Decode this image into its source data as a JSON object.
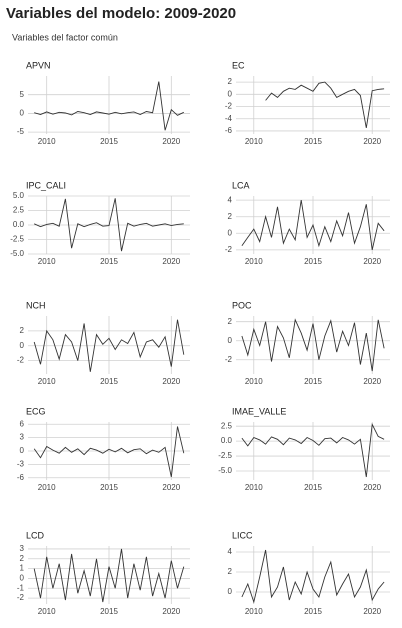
{
  "title": "Variables del modelo: 2009-2020",
  "subtitle": "Variables del factor común",
  "chart_data": [
    {
      "type": "line",
      "title": "APVN",
      "color": "#333333",
      "grid": true,
      "x": [
        2009,
        2009.5,
        2010,
        2010.5,
        2011,
        2011.5,
        2012,
        2012.5,
        2013,
        2013.5,
        2014,
        2014.5,
        2015,
        2015.5,
        2016,
        2016.5,
        2017,
        2017.5,
        2018,
        2018.5,
        2019,
        2019.5,
        2020,
        2020.5,
        2021
      ],
      "values": [
        0.2,
        -0.3,
        0.4,
        -0.2,
        0.3,
        0.1,
        -0.4,
        0.5,
        0.2,
        -0.3,
        0.4,
        0.1,
        -0.2,
        0.3,
        -0.1,
        0.2,
        0.4,
        -0.3,
        0.5,
        0.2,
        8.5,
        -4.5,
        1.0,
        -0.5,
        0.3
      ],
      "xlim": [
        2008.5,
        2021.5
      ],
      "xticks": [
        2010,
        2015,
        2020
      ],
      "ylim": [
        -5.5,
        10
      ],
      "yticks": [
        -5,
        0,
        5
      ]
    },
    {
      "type": "line",
      "title": "EC",
      "color": "#333333",
      "grid": true,
      "x": [
        2009,
        2009.5,
        2010,
        2010.5,
        2011,
        2011.5,
        2012,
        2012.5,
        2013,
        2013.5,
        2014,
        2014.5,
        2015,
        2015.5,
        2016,
        2016.5,
        2017,
        2017.5,
        2018,
        2018.5,
        2019,
        2019.5,
        2020,
        2020.5,
        2021
      ],
      "values": [
        null,
        null,
        null,
        null,
        -1.0,
        0.2,
        -0.5,
        0.5,
        1.0,
        0.8,
        1.5,
        1.0,
        0.5,
        1.8,
        2.0,
        1.0,
        -0.5,
        0.0,
        0.5,
        0.8,
        -0.2,
        -5.5,
        0.6,
        0.8,
        0.9
      ],
      "xlim": [
        2008.5,
        2021.5
      ],
      "xticks": [
        2010,
        2015,
        2020
      ],
      "ylim": [
        -6.5,
        3
      ],
      "yticks": [
        -6,
        -4,
        -2,
        0,
        2
      ]
    },
    {
      "type": "line",
      "title": "IPC_CALI",
      "color": "#333333",
      "grid": true,
      "x": [
        2009,
        2009.5,
        2010,
        2010.5,
        2011,
        2011.5,
        2012,
        2012.5,
        2013,
        2013.5,
        2014,
        2014.5,
        2015,
        2015.5,
        2016,
        2016.5,
        2017,
        2017.5,
        2018,
        2018.5,
        2019,
        2019.5,
        2020,
        2020.5,
        2021
      ],
      "values": [
        0.2,
        -0.3,
        0.1,
        0.3,
        -0.2,
        4.5,
        -4.0,
        0.2,
        -0.3,
        0.1,
        0.4,
        -0.2,
        -0.1,
        4.6,
        -4.5,
        0.3,
        -0.2,
        0.1,
        0.3,
        -0.2,
        0.0,
        0.2,
        -0.1,
        0.1,
        0.2
      ],
      "xlim": [
        2008.5,
        2021.5
      ],
      "xticks": [
        2010,
        2015,
        2020
      ],
      "ylim": [
        -5,
        5
      ],
      "yticks": [
        {
          "value": -5,
          "label": "-5.0"
        },
        {
          "value": -2.5,
          "label": "-2.5"
        },
        {
          "value": 0,
          "label": "0.0"
        },
        {
          "value": 2.5,
          "label": "2.5"
        },
        {
          "value": 5,
          "label": "5.0"
        }
      ]
    },
    {
      "type": "line",
      "title": "LCA",
      "color": "#333333",
      "grid": true,
      "x": [
        2009,
        2009.5,
        2010,
        2010.5,
        2011,
        2011.5,
        2012,
        2012.5,
        2013,
        2013.5,
        2014,
        2014.5,
        2015,
        2015.5,
        2016,
        2016.5,
        2017,
        2017.5,
        2018,
        2018.5,
        2019,
        2019.5,
        2020,
        2020.5,
        2021
      ],
      "values": [
        -1.5,
        -0.5,
        0.5,
        -1.0,
        2.0,
        -0.5,
        3.2,
        -1.2,
        0.5,
        -0.8,
        4.0,
        -0.5,
        1.0,
        -1.5,
        0.8,
        -1.0,
        1.5,
        -0.3,
        2.5,
        -1.2,
        0.8,
        3.5,
        -2.0,
        1.2,
        0.3
      ],
      "xlim": [
        2008.5,
        2021.5
      ],
      "xticks": [
        2010,
        2015,
        2020
      ],
      "ylim": [
        -2.5,
        4.5
      ],
      "yticks": [
        -2,
        0,
        2,
        4
      ]
    },
    {
      "type": "line",
      "title": "NCH",
      "color": "#333333",
      "grid": true,
      "x": [
        2009,
        2009.5,
        2010,
        2010.5,
        2011,
        2011.5,
        2012,
        2012.5,
        2013,
        2013.5,
        2014,
        2014.5,
        2015,
        2015.5,
        2016,
        2016.5,
        2017,
        2017.5,
        2018,
        2018.5,
        2019,
        2019.5,
        2020,
        2020.5,
        2021
      ],
      "values": [
        0.5,
        -2.5,
        2.0,
        0.8,
        -1.8,
        1.5,
        0.5,
        -2.0,
        3.0,
        -3.5,
        1.5,
        0.2,
        1.0,
        -0.5,
        0.8,
        0.3,
        1.8,
        -1.5,
        0.5,
        0.8,
        -0.2,
        1.2,
        -2.8,
        3.5,
        -1.2
      ],
      "xlim": [
        2008.5,
        2021.5
      ],
      "xticks": [
        2010,
        2015,
        2020
      ],
      "ylim": [
        -3.8,
        4
      ],
      "yticks": [
        -2,
        0,
        2
      ]
    },
    {
      "type": "line",
      "title": "POC",
      "color": "#333333",
      "grid": true,
      "x": [
        2009,
        2009.5,
        2010,
        2010.5,
        2011,
        2011.5,
        2012,
        2012.5,
        2013,
        2013.5,
        2014,
        2014.5,
        2015,
        2015.5,
        2016,
        2016.5,
        2017,
        2017.5,
        2018,
        2018.5,
        2019,
        2019.5,
        2020,
        2020.5,
        2021
      ],
      "values": [
        0.5,
        -1.5,
        1.2,
        -0.5,
        2.0,
        -2.2,
        1.5,
        0.3,
        -1.8,
        2.2,
        0.8,
        -1.0,
        1.8,
        -2.0,
        0.5,
        2.1,
        -1.2,
        1.0,
        -0.5,
        1.9,
        -2.5,
        0.8,
        -3.2,
        2.2,
        -0.8
      ],
      "xlim": [
        2008.5,
        2021.5
      ],
      "xticks": [
        2010,
        2015,
        2020
      ],
      "ylim": [
        -3.5,
        2.6
      ],
      "yticks": [
        -2,
        0,
        2
      ]
    },
    {
      "type": "line",
      "title": "ECG",
      "color": "#333333",
      "grid": true,
      "x": [
        2009,
        2009.5,
        2010,
        2010.5,
        2011,
        2011.5,
        2012,
        2012.5,
        2013,
        2013.5,
        2014,
        2014.5,
        2015,
        2015.5,
        2016,
        2016.5,
        2017,
        2017.5,
        2018,
        2018.5,
        2019,
        2019.5,
        2020,
        2020.5,
        2021
      ],
      "values": [
        0.5,
        -1.5,
        1.0,
        0.2,
        -0.5,
        0.8,
        -0.3,
        0.5,
        -0.8,
        0.6,
        0.2,
        -0.5,
        0.4,
        -0.2,
        0.6,
        -0.4,
        0.3,
        0.5,
        -0.6,
        0.2,
        -0.3,
        0.8,
        -5.8,
        5.5,
        -0.5
      ],
      "xlim": [
        2008.5,
        2021.5
      ],
      "xticks": [
        2010,
        2015,
        2020
      ],
      "ylim": [
        -6.5,
        6.5
      ],
      "yticks": [
        -6,
        -3,
        0,
        3,
        6
      ]
    },
    {
      "type": "line",
      "title": "IMAE_VALLE",
      "color": "#333333",
      "grid": true,
      "x": [
        2009,
        2009.5,
        2010,
        2010.5,
        2011,
        2011.5,
        2012,
        2012.5,
        2013,
        2013.5,
        2014,
        2014.5,
        2015,
        2015.5,
        2016,
        2016.5,
        2017,
        2017.5,
        2018,
        2018.5,
        2019,
        2019.5,
        2020,
        2020.5,
        2021
      ],
      "values": [
        0.5,
        -0.8,
        0.6,
        0.2,
        -0.5,
        0.7,
        0.3,
        -0.6,
        0.5,
        0.2,
        -0.4,
        0.6,
        0.1,
        -0.7,
        0.4,
        0.5,
        -0.3,
        0.6,
        0.2,
        -0.5,
        0.3,
        -6.0,
        2.8,
        0.8,
        0.3
      ],
      "xlim": [
        2008.5,
        2021.5
      ],
      "xticks": [
        2010,
        2015,
        2020
      ],
      "ylim": [
        -6.5,
        3.2
      ],
      "yticks": [
        {
          "value": -5,
          "label": "-5.0"
        },
        {
          "value": -2.5,
          "label": "-2.5"
        },
        {
          "value": 0,
          "label": "0.0"
        },
        {
          "value": 2.5,
          "label": "2.5"
        }
      ]
    },
    {
      "type": "line",
      "title": "LCD",
      "color": "#333333",
      "grid": true,
      "x": [
        2009,
        2009.5,
        2010,
        2010.5,
        2011,
        2011.5,
        2012,
        2012.5,
        2013,
        2013.5,
        2014,
        2014.5,
        2015,
        2015.5,
        2016,
        2016.5,
        2017,
        2017.5,
        2018,
        2018.5,
        2019,
        2019.5,
        2020,
        2020.5,
        2021
      ],
      "values": [
        1.0,
        -2.0,
        2.2,
        -1.0,
        1.5,
        -2.2,
        2.5,
        -1.5,
        0.8,
        -1.8,
        2.0,
        -2.4,
        1.2,
        -1.0,
        3.0,
        -2.0,
        1.5,
        -1.2,
        2.2,
        -1.8,
        0.5,
        -2.0,
        1.8,
        -1.0,
        1.2
      ],
      "xlim": [
        2008.5,
        2021.5
      ],
      "xticks": [
        2010,
        2015,
        2020
      ],
      "ylim": [
        -2.6,
        3.3
      ],
      "yticks": [
        -2,
        -1,
        0,
        1,
        2,
        3
      ]
    },
    {
      "type": "line",
      "title": "LICC",
      "color": "#333333",
      "grid": true,
      "x": [
        2009,
        2009.5,
        2010,
        2010.5,
        2011,
        2011.5,
        2012,
        2012.5,
        2013,
        2013.5,
        2014,
        2014.5,
        2015,
        2015.5,
        2016,
        2016.5,
        2017,
        2017.5,
        2018,
        2018.5,
        2019,
        2019.5,
        2020,
        2020.5,
        2021
      ],
      "values": [
        -0.5,
        0.8,
        -1.0,
        1.5,
        4.2,
        -0.5,
        0.5,
        2.5,
        -0.8,
        1.0,
        -0.2,
        2.0,
        0.3,
        -0.5,
        1.5,
        3.0,
        -0.3,
        0.8,
        1.8,
        -0.5,
        0.5,
        2.2,
        -0.8,
        0.3,
        1.0
      ],
      "xlim": [
        2008.5,
        2021.5
      ],
      "xticks": [
        2010,
        2015,
        2020
      ],
      "ylim": [
        -1.2,
        4.6
      ],
      "yticks": [
        0,
        2,
        4
      ]
    }
  ]
}
